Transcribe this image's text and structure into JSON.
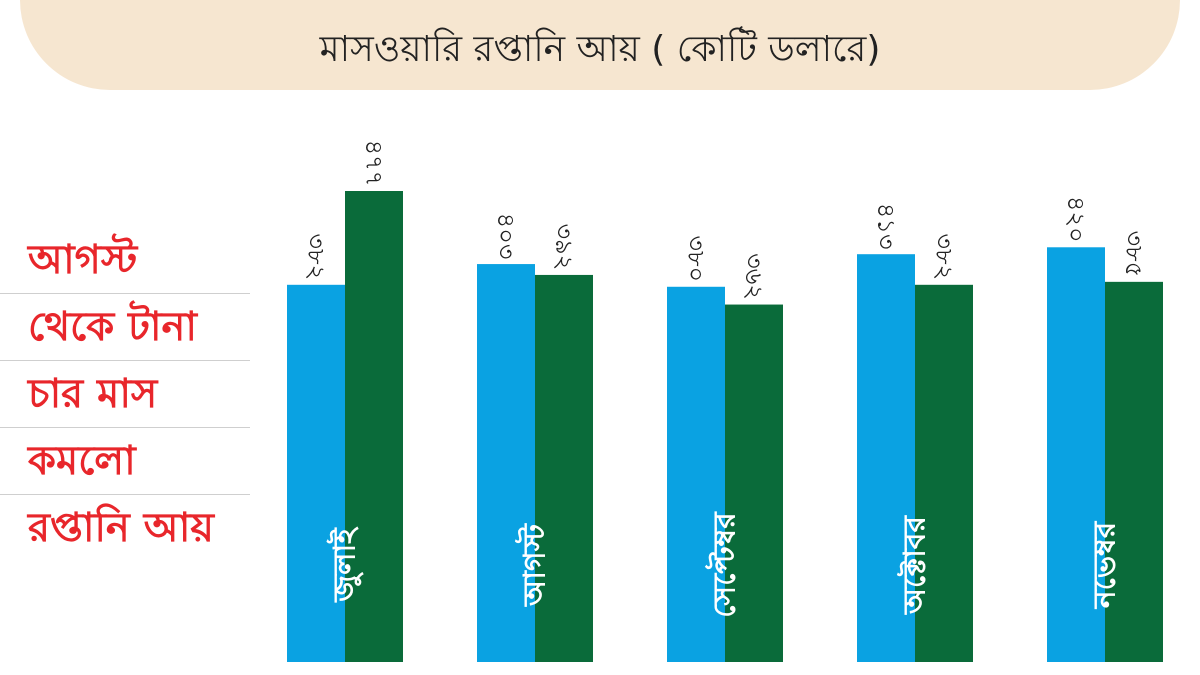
{
  "colors": {
    "july_series": "#0aa2e2",
    "august_series": "#0a6b3a",
    "side_text": "#e8262b",
    "banner": "#f6e6d0"
  },
  "title": "মাসওয়ারি রপ্তানি আয় ( কোটি ডলারে)",
  "side_text": [
    "আগস্ট",
    "থেকে টানা",
    "চার মাস",
    "কমলো",
    "রপ্তানি আয়"
  ],
  "chart_data": {
    "type": "bar",
    "title": "মাসওয়ারি রপ্তানি আয় ( কোটি ডলারে)",
    "categories": [
      "জুলাই",
      "আগস্ট",
      "সেপ্টেম্বর",
      "অক্টোবর",
      "নভেম্বর"
    ],
    "series": [
      {
        "values": [
          382,
          403,
          380,
          413,
          420
        ],
        "labels": [
          "৩৮২",
          "৪০৩",
          "৩৮০",
          "৪১৩",
          "৪২০"
        ],
        "color": "#0aa2e2"
      },
      {
        "values": [
          477,
          392,
          362,
          382,
          385
        ],
        "labels": [
          "৪৭৭",
          "৩৯২",
          "৩৬২",
          "৩৮২",
          "৩৮৫"
        ],
        "color": "#0a6b3a"
      }
    ],
    "xlabel": "",
    "ylabel": "",
    "grid": false,
    "legend": "none"
  }
}
